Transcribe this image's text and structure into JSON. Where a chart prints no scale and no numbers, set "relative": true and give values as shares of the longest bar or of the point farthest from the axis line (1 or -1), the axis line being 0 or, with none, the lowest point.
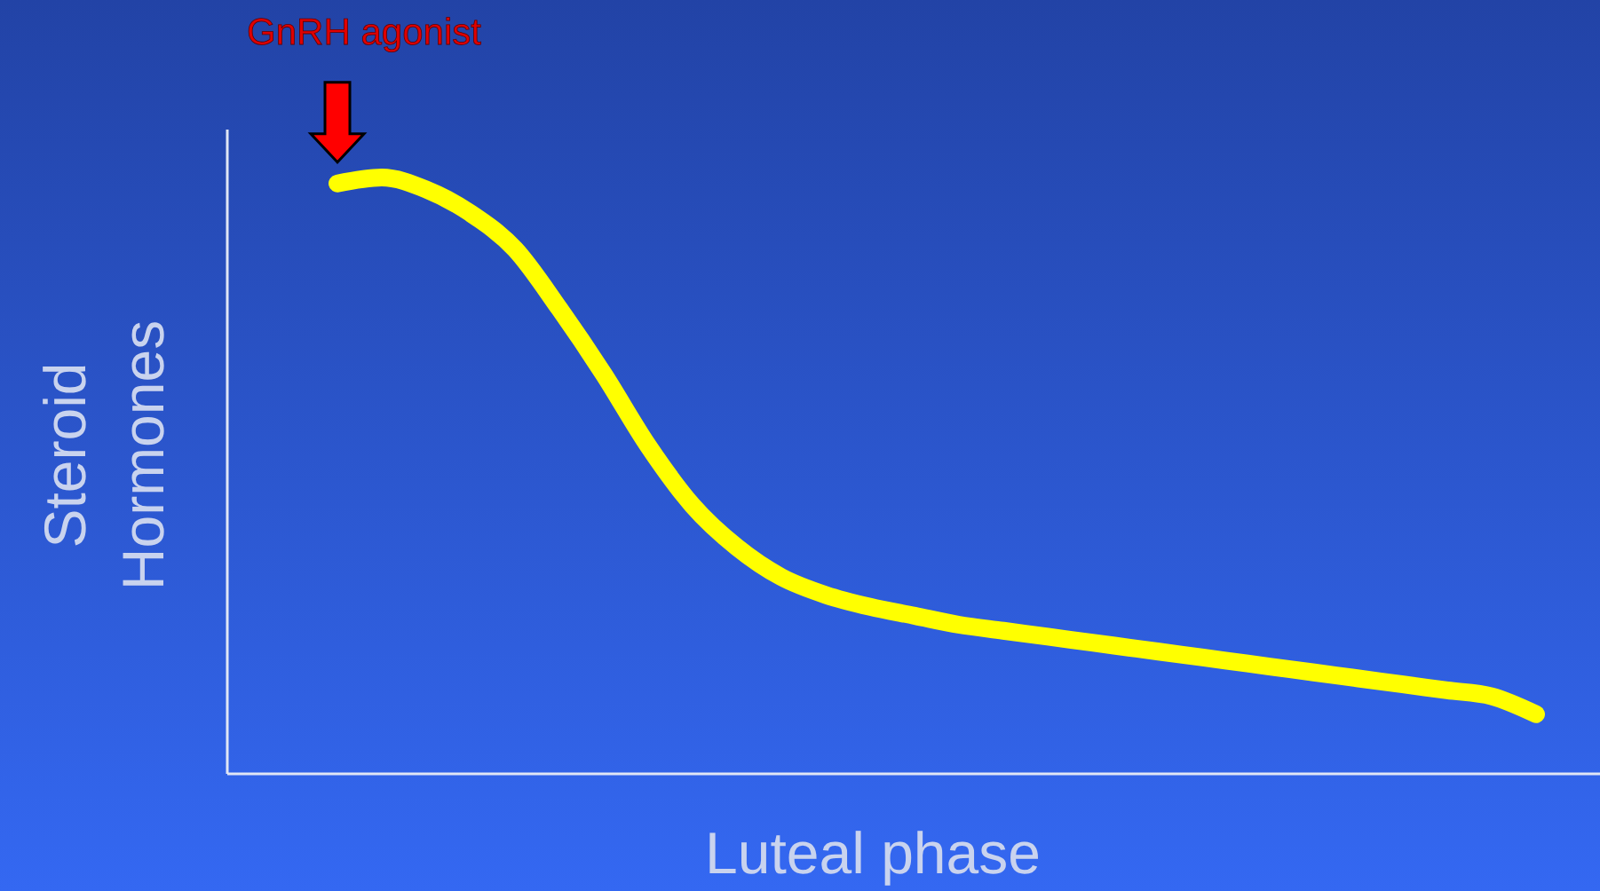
{
  "chart_data": {
    "type": "line",
    "relative": true,
    "xlabel": "Luteal phase",
    "ylabel": "Steroid Hormones",
    "annotations": [
      "GnRH agonist"
    ],
    "categories": [
      null,
      null,
      null,
      null,
      null,
      null,
      null,
      null,
      null,
      null,
      null,
      null,
      null,
      null,
      null,
      null,
      null,
      null,
      null,
      null,
      null,
      null,
      null,
      null,
      null,
      null,
      null,
      null
    ],
    "series": [
      {
        "color": "#ffff00",
        "values": [
          0.99,
          1,
          0.98,
          0.94,
          0.88,
          0.78,
          0.67,
          0.55,
          0.45,
          0.38,
          0.33,
          0.3,
          0.28,
          0.265,
          0.25,
          0.24,
          0.23,
          0.22,
          0.21,
          0.2,
          0.19,
          0.18,
          0.17,
          0.16,
          0.15,
          0.14,
          0.13,
          0.1
        ]
      }
    ]
  }
}
